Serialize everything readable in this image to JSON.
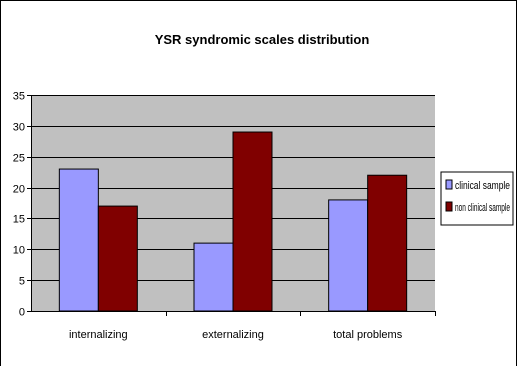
{
  "chart_data": {
    "type": "bar",
    "title": "YSR syndromic scales distribution",
    "xlabel": "",
    "ylabel": "",
    "categories": [
      "internalizing",
      "externalizing",
      "total problems"
    ],
    "series": [
      {
        "name": "clinical sample",
        "values": [
          23,
          11,
          18
        ],
        "color": "#9999ff"
      },
      {
        "name": "non clinical sample",
        "values": [
          17,
          29,
          22
        ],
        "color": "#800000"
      }
    ],
    "ylim": [
      0,
      35
    ],
    "yticks": [
      "0",
      "5",
      "10",
      "15",
      "20",
      "25",
      "30",
      "35"
    ],
    "grid": true,
    "legend_position": "right",
    "plot_background": "#c0c0c0"
  }
}
